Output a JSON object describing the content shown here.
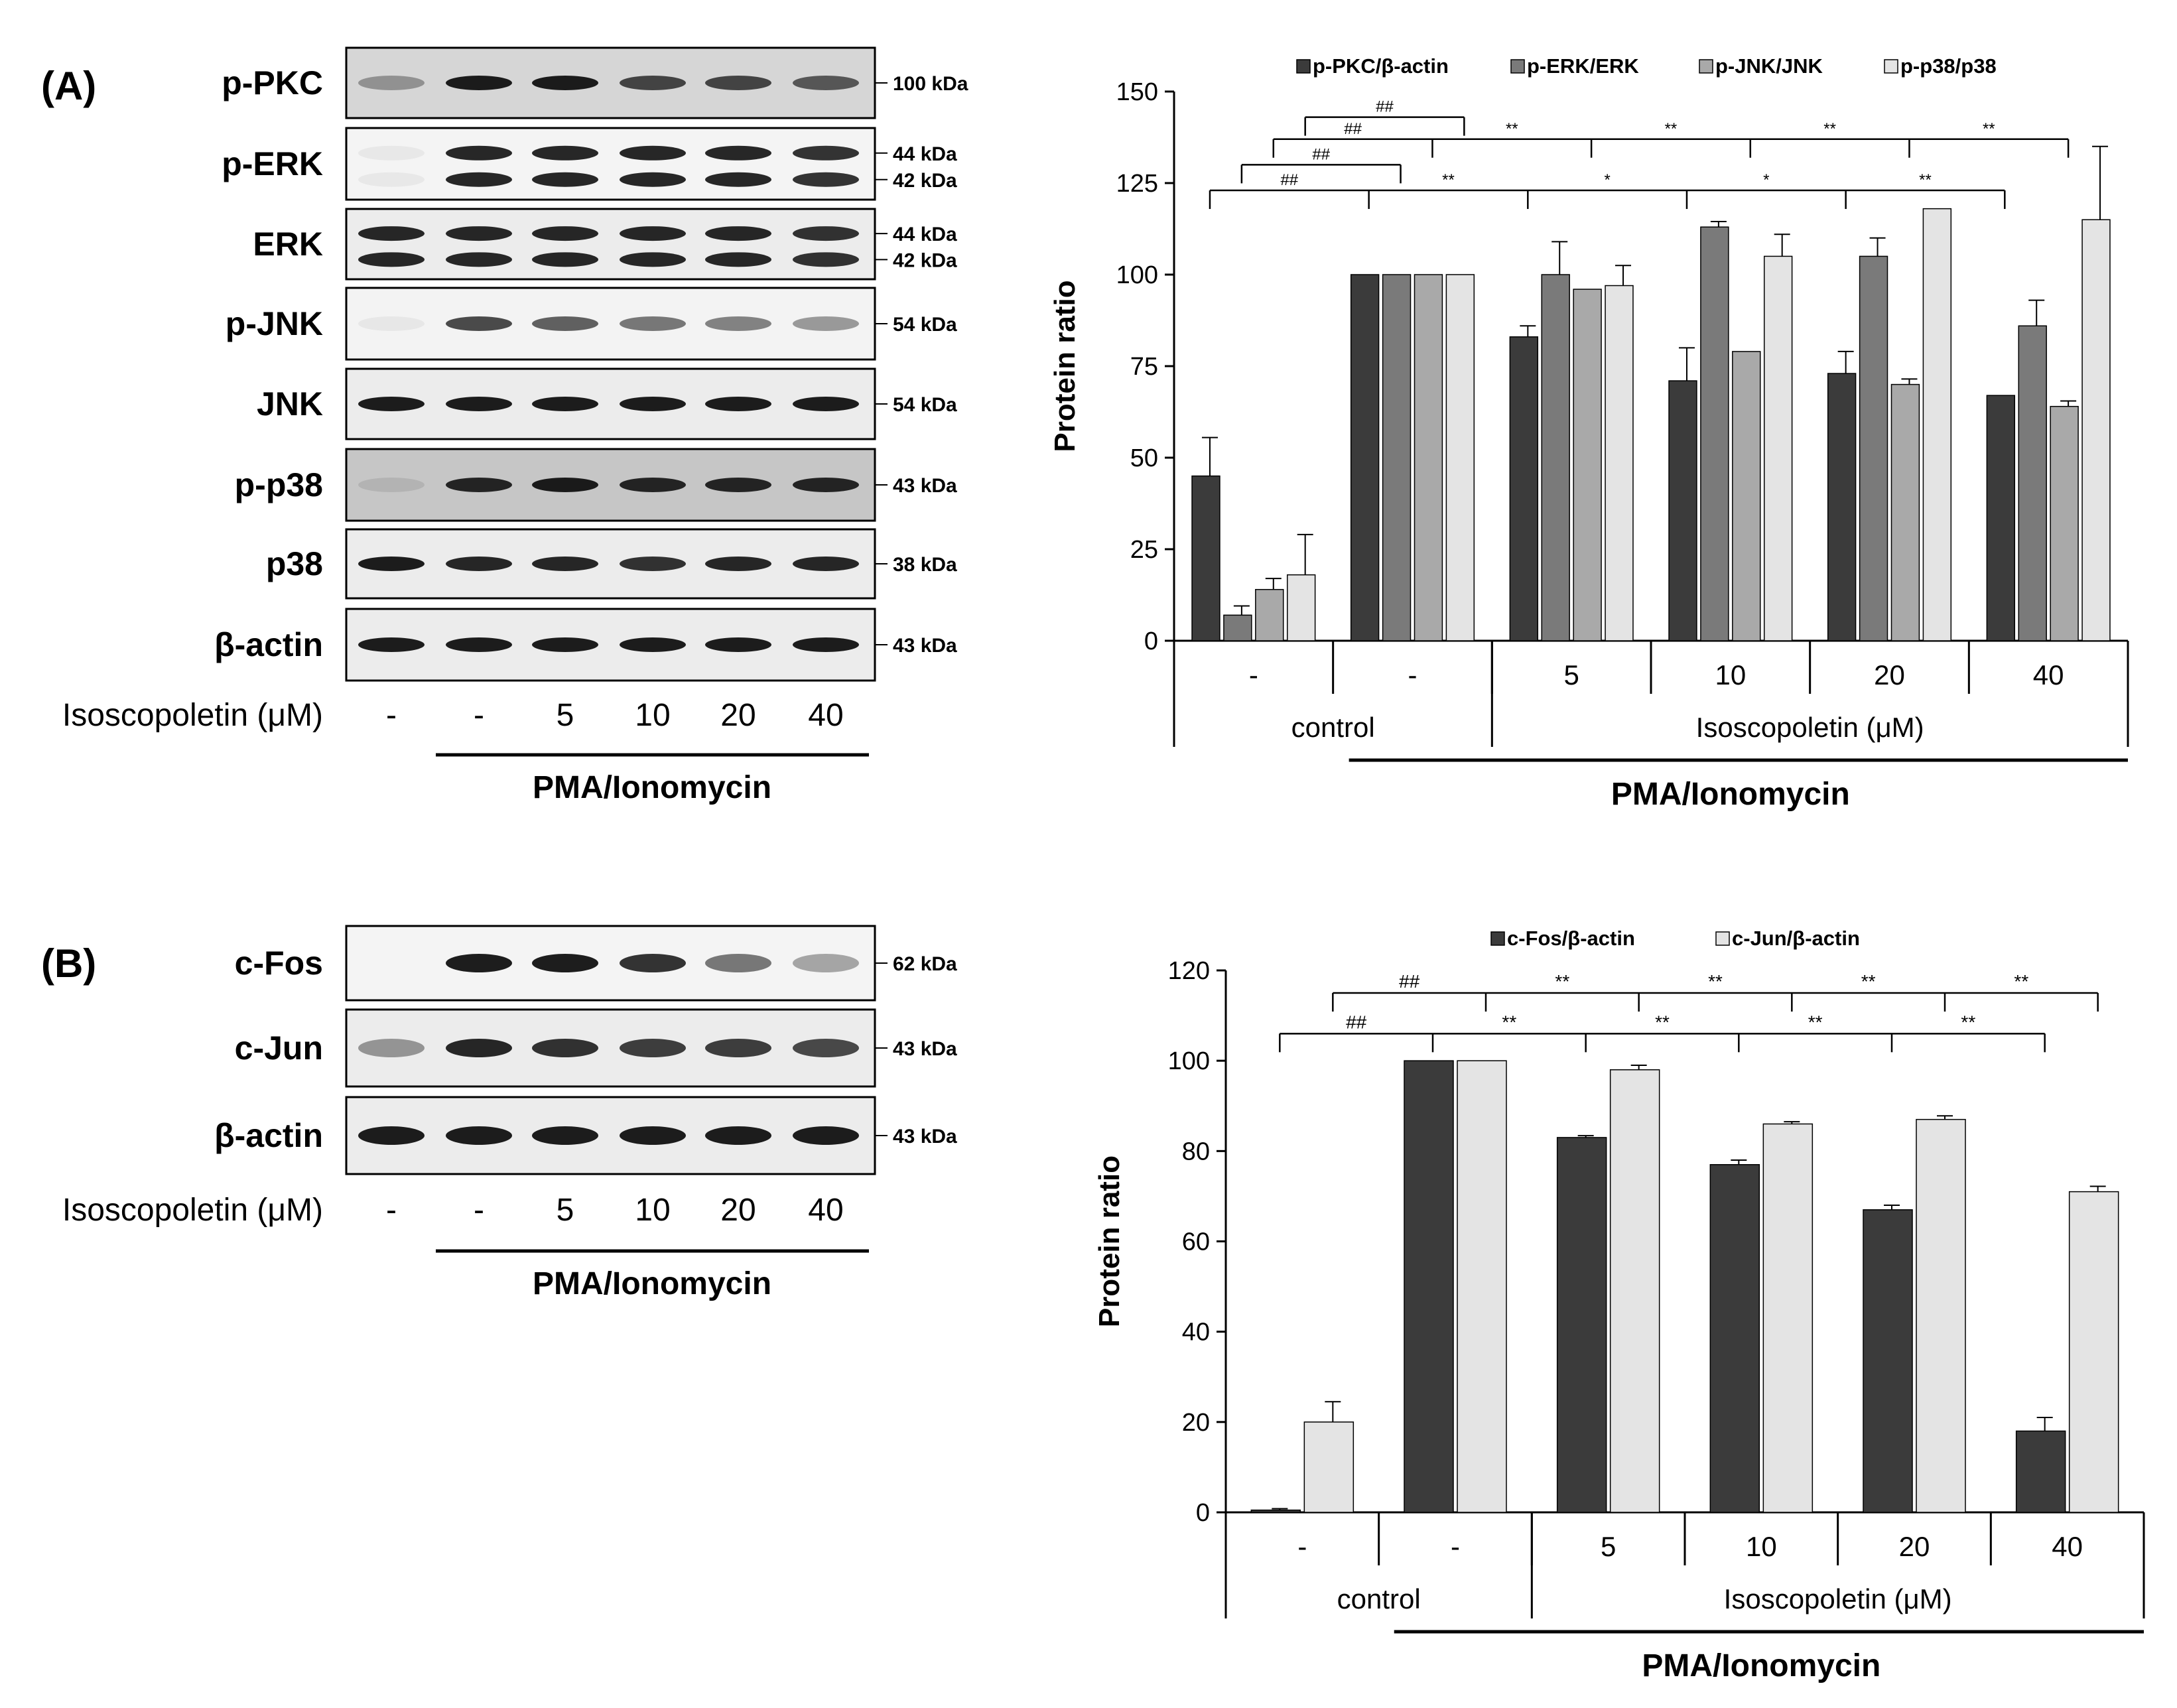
{
  "panelA": {
    "label": "(A)",
    "blot": {
      "bands": [
        {
          "name": "p-PKC",
          "kda": [
            "100 kDa"
          ]
        },
        {
          "name": "p-ERK",
          "kda": [
            "44 kDa",
            "42 kDa"
          ]
        },
        {
          "name": "ERK",
          "kda": [
            "44 kDa",
            "42 kDa"
          ]
        },
        {
          "name": "p-JNK",
          "kda": [
            "54 kDa"
          ]
        },
        {
          "name": "JNK",
          "kda": [
            "54 kDa"
          ]
        },
        {
          "name": "p-p38",
          "kda": [
            "43 kDa"
          ]
        },
        {
          "name": "p38",
          "kda": [
            "38 kDa"
          ]
        },
        {
          "name": "β-actin",
          "kda": [
            "43 kDa"
          ]
        }
      ],
      "lane_title": "Isoscopoletin (μM)",
      "lanes": [
        "-",
        "-",
        "5",
        "10",
        "20",
        "40"
      ],
      "treatment": "PMA/Ionomycin"
    }
  },
  "panelB": {
    "label": "(B)",
    "blot": {
      "bands": [
        {
          "name": "c-Fos",
          "kda": [
            "62 kDa"
          ]
        },
        {
          "name": "c-Jun",
          "kda": [
            "43 kDa"
          ]
        },
        {
          "name": "β-actin",
          "kda": [
            "43 kDa"
          ]
        }
      ],
      "lane_title": "Isoscopoletin (μM)",
      "lanes": [
        "-",
        "-",
        "5",
        "10",
        "20",
        "40"
      ],
      "treatment": "PMA/Ionomycin"
    }
  },
  "chart_data": [
    {
      "type": "bar",
      "ylabel": "Protein ratio",
      "ylim": [
        0,
        150
      ],
      "yticks": [
        0,
        25,
        50,
        75,
        100,
        125,
        150
      ],
      "categories": [
        "-",
        "-",
        "5",
        "10",
        "20",
        "40"
      ],
      "group_labels": [
        "control",
        "Isoscopoletin (μM)"
      ],
      "treatment": "PMA/Ionomycin",
      "legend_position": "top",
      "series": [
        {
          "name": "p-PKC/β-actin",
          "color": "#3b3b3b",
          "values": [
            45,
            100,
            83,
            71,
            73,
            67
          ],
          "errors": [
            10.5,
            0,
            3,
            9,
            6,
            0
          ]
        },
        {
          "name": "p-ERK/ERK",
          "color": "#7a7a7a",
          "values": [
            7,
            100,
            100,
            113,
            105,
            86
          ],
          "errors": [
            2.5,
            0,
            9,
            1.5,
            5,
            7
          ]
        },
        {
          "name": "p-JNK/JNK",
          "color": "#a9a9a9",
          "values": [
            14,
            100,
            96,
            79,
            70,
            64
          ],
          "errors": [
            3,
            0,
            0,
            0,
            1.5,
            1.5
          ]
        },
        {
          "name": "p-p38/p38",
          "color": "#e4e4e4",
          "values": [
            18,
            100,
            97,
            105,
            118,
            115
          ],
          "errors": [
            11,
            0,
            5.5,
            6,
            0,
            20
          ]
        }
      ],
      "significance": {
        "hash": "##",
        "star1": "*",
        "star2": "**"
      }
    },
    {
      "type": "bar",
      "ylabel": "Protein ratio",
      "ylim": [
        0,
        120
      ],
      "yticks": [
        0,
        20,
        40,
        60,
        80,
        100,
        120
      ],
      "categories": [
        "-",
        "-",
        "5",
        "10",
        "20",
        "40"
      ],
      "group_labels": [
        "control",
        "Isoscopoletin (μM)"
      ],
      "treatment": "PMA/Ionomycin",
      "legend_position": "top",
      "series": [
        {
          "name": "c-Fos/β-actin",
          "color": "#3b3b3b",
          "values": [
            0.5,
            100,
            83,
            77,
            67,
            18
          ],
          "errors": [
            0.3,
            0,
            0.4,
            1,
            1,
            3
          ]
        },
        {
          "name": "c-Jun/β-actin",
          "color": "#e4e4e4",
          "values": [
            20,
            100,
            98,
            86,
            87,
            71
          ],
          "errors": [
            4.5,
            0,
            1,
            0.5,
            0.8,
            1.2
          ]
        }
      ],
      "significance": {
        "hash": "##",
        "star2": "**"
      }
    }
  ]
}
